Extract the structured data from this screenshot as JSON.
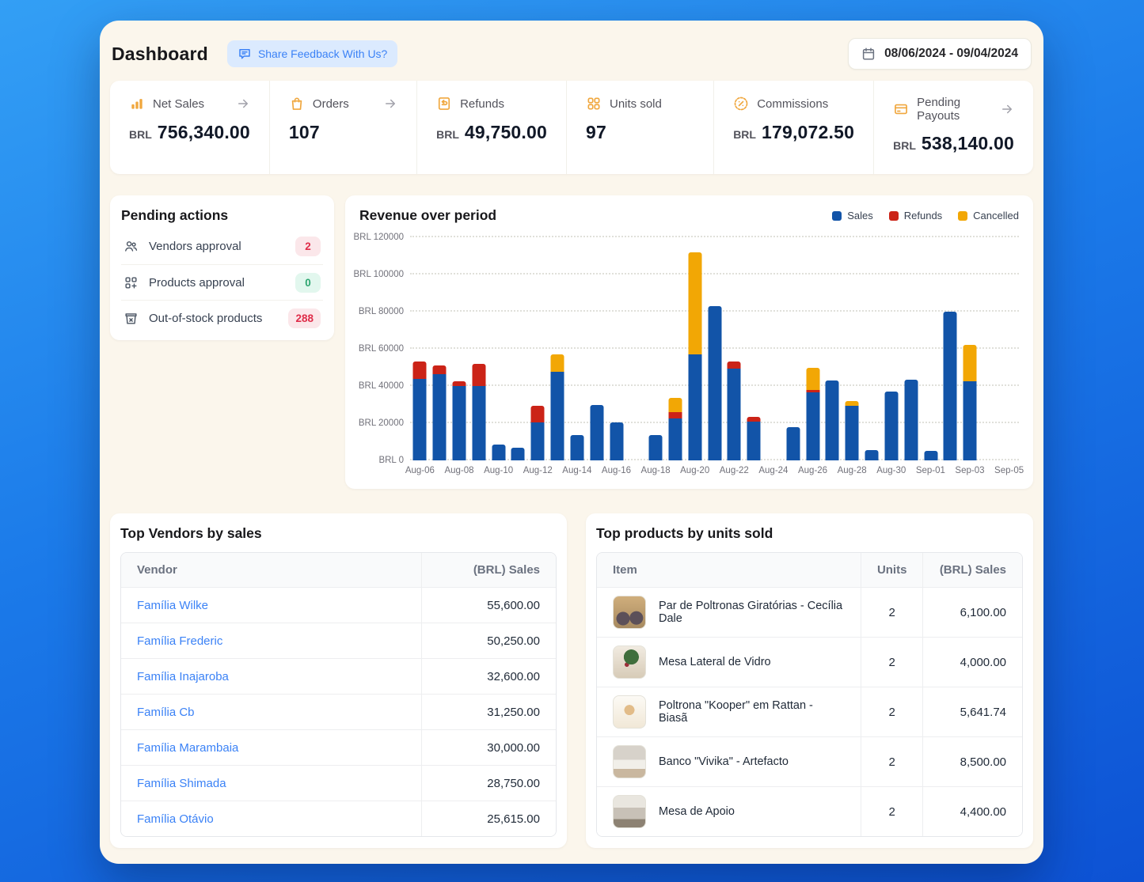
{
  "header": {
    "title": "Dashboard",
    "feedback_button": "Share Feedback With Us?",
    "date_range": "08/06/2024 - 09/04/2024"
  },
  "stats": {
    "tiles": [
      {
        "icon": "bar-chart-icon",
        "label": "Net Sales",
        "currency": "BRL",
        "value": "756,340.00",
        "arrow": true
      },
      {
        "icon": "shopping-bag-icon",
        "label": "Orders",
        "currency": "",
        "value": "107",
        "arrow": true
      },
      {
        "icon": "refund-receipt-icon",
        "label": "Refunds",
        "currency": "BRL",
        "value": "49,750.00",
        "arrow": false
      },
      {
        "icon": "units-grid-icon",
        "label": "Units sold",
        "currency": "",
        "value": "97",
        "arrow": false
      },
      {
        "icon": "percent-badge-icon",
        "label": "Commissions",
        "currency": "BRL",
        "value": "179,072.50",
        "arrow": false
      },
      {
        "icon": "credit-card-icon",
        "label": "Pending Payouts",
        "currency": "BRL",
        "value": "538,140.00",
        "arrow": true
      }
    ]
  },
  "pending_actions": {
    "title": "Pending actions",
    "items": [
      {
        "icon": "users-icon",
        "label": "Vendors approval",
        "count": "2",
        "tone": "red"
      },
      {
        "icon": "product-approval-icon",
        "label": "Products approval",
        "count": "0",
        "tone": "green"
      },
      {
        "icon": "out-of-stock-icon",
        "label": "Out-of-stock products",
        "count": "288",
        "tone": "red"
      }
    ]
  },
  "chart_data": {
    "type": "stacked-bar",
    "title": "Revenue over period",
    "currency_prefix": "BRL",
    "ylim": [
      0,
      120000
    ],
    "y_step": 20000,
    "grid": true,
    "legend_position": "top-right",
    "x": [
      "Aug-06",
      "Aug-07",
      "Aug-08",
      "Aug-09",
      "Aug-10",
      "Aug-11",
      "Aug-12",
      "Aug-13",
      "Aug-14",
      "Aug-15",
      "Aug-16",
      "Aug-17",
      "Aug-18",
      "Aug-19",
      "Aug-20",
      "Aug-21",
      "Aug-22",
      "Aug-23",
      "Aug-24",
      "Aug-25",
      "Aug-26",
      "Aug-27",
      "Aug-28",
      "Aug-29",
      "Aug-30",
      "Aug-31",
      "Sep-01",
      "Sep-02",
      "Sep-03",
      "Sep-04",
      "Sep-05"
    ],
    "x_tick_every": 2,
    "series": [
      {
        "name": "Sales",
        "color": "#1254a8",
        "values": [
          44000,
          46500,
          40000,
          40000,
          8500,
          7000,
          20500,
          47500,
          13500,
          30000,
          20500,
          0,
          13500,
          22500,
          57000,
          83000,
          49500,
          21000,
          0,
          18000,
          36500,
          43000,
          29500,
          5500,
          37000,
          43500,
          5000,
          80000,
          42500,
          0,
          0
        ]
      },
      {
        "name": "Refunds",
        "color": "#cb2317",
        "values": [
          9000,
          4500,
          2500,
          12000,
          0,
          0,
          9000,
          0,
          0,
          0,
          0,
          0,
          0,
          3500,
          0,
          0,
          3500,
          2500,
          0,
          0,
          1500,
          0,
          0,
          0,
          0,
          0,
          0,
          0,
          0,
          0,
          0
        ]
      },
      {
        "name": "Cancelled",
        "color": "#f2a705",
        "values": [
          0,
          0,
          0,
          0,
          0,
          0,
          0,
          9500,
          0,
          0,
          0,
          0,
          0,
          7500,
          55000,
          0,
          0,
          0,
          0,
          0,
          12000,
          0,
          2500,
          0,
          0,
          0,
          0,
          0,
          19500,
          0,
          0
        ]
      }
    ]
  },
  "top_vendors": {
    "title": "Top Vendors by sales",
    "columns": [
      "Vendor",
      "(BRL) Sales"
    ],
    "rows": [
      {
        "vendor": "Família Wilke",
        "sales": "55,600.00"
      },
      {
        "vendor": "Família Frederic",
        "sales": "50,250.00"
      },
      {
        "vendor": "Família Inajaroba",
        "sales": "32,600.00"
      },
      {
        "vendor": "Família Cb",
        "sales": "31,250.00"
      },
      {
        "vendor": "Família Marambaia",
        "sales": "30,000.00"
      },
      {
        "vendor": "Família Shimada",
        "sales": "28,750.00"
      },
      {
        "vendor": "Família Otávio",
        "sales": "25,615.00"
      }
    ]
  },
  "top_products": {
    "title": "Top products by units sold",
    "columns": [
      "Item",
      "Units",
      "(BRL) Sales"
    ],
    "rows": [
      {
        "image": "armchairs-photo",
        "item": "Par de Poltronas Giratórias - Cecília Dale",
        "units": "2",
        "sales": "6,100.00"
      },
      {
        "image": "glass-table-photo",
        "item": "Mesa Lateral de Vidro",
        "units": "2",
        "sales": "4,000.00"
      },
      {
        "image": "rattan-chair-photo",
        "item": "Poltrona \"Kooper\" em Rattan - Biasã",
        "units": "2",
        "sales": "5,641.74"
      },
      {
        "image": "bench-photo",
        "item": "Banco \"Vivika\" - Artefacto",
        "units": "2",
        "sales": "8,500.00"
      },
      {
        "image": "side-table-photo",
        "item": "Mesa de Apoio",
        "units": "2",
        "sales": "4,400.00"
      }
    ]
  },
  "colors": {
    "accent_blue": "#3b82f6",
    "icon_amber": "#f0a73e",
    "sales": "#1254a8",
    "refunds": "#cb2317",
    "cancelled": "#f2a705",
    "badge_red_bg": "#fbe7ea",
    "badge_red_text": "#df2c49",
    "badge_green_bg": "#e2f7ee",
    "badge_green_text": "#2fa671"
  }
}
